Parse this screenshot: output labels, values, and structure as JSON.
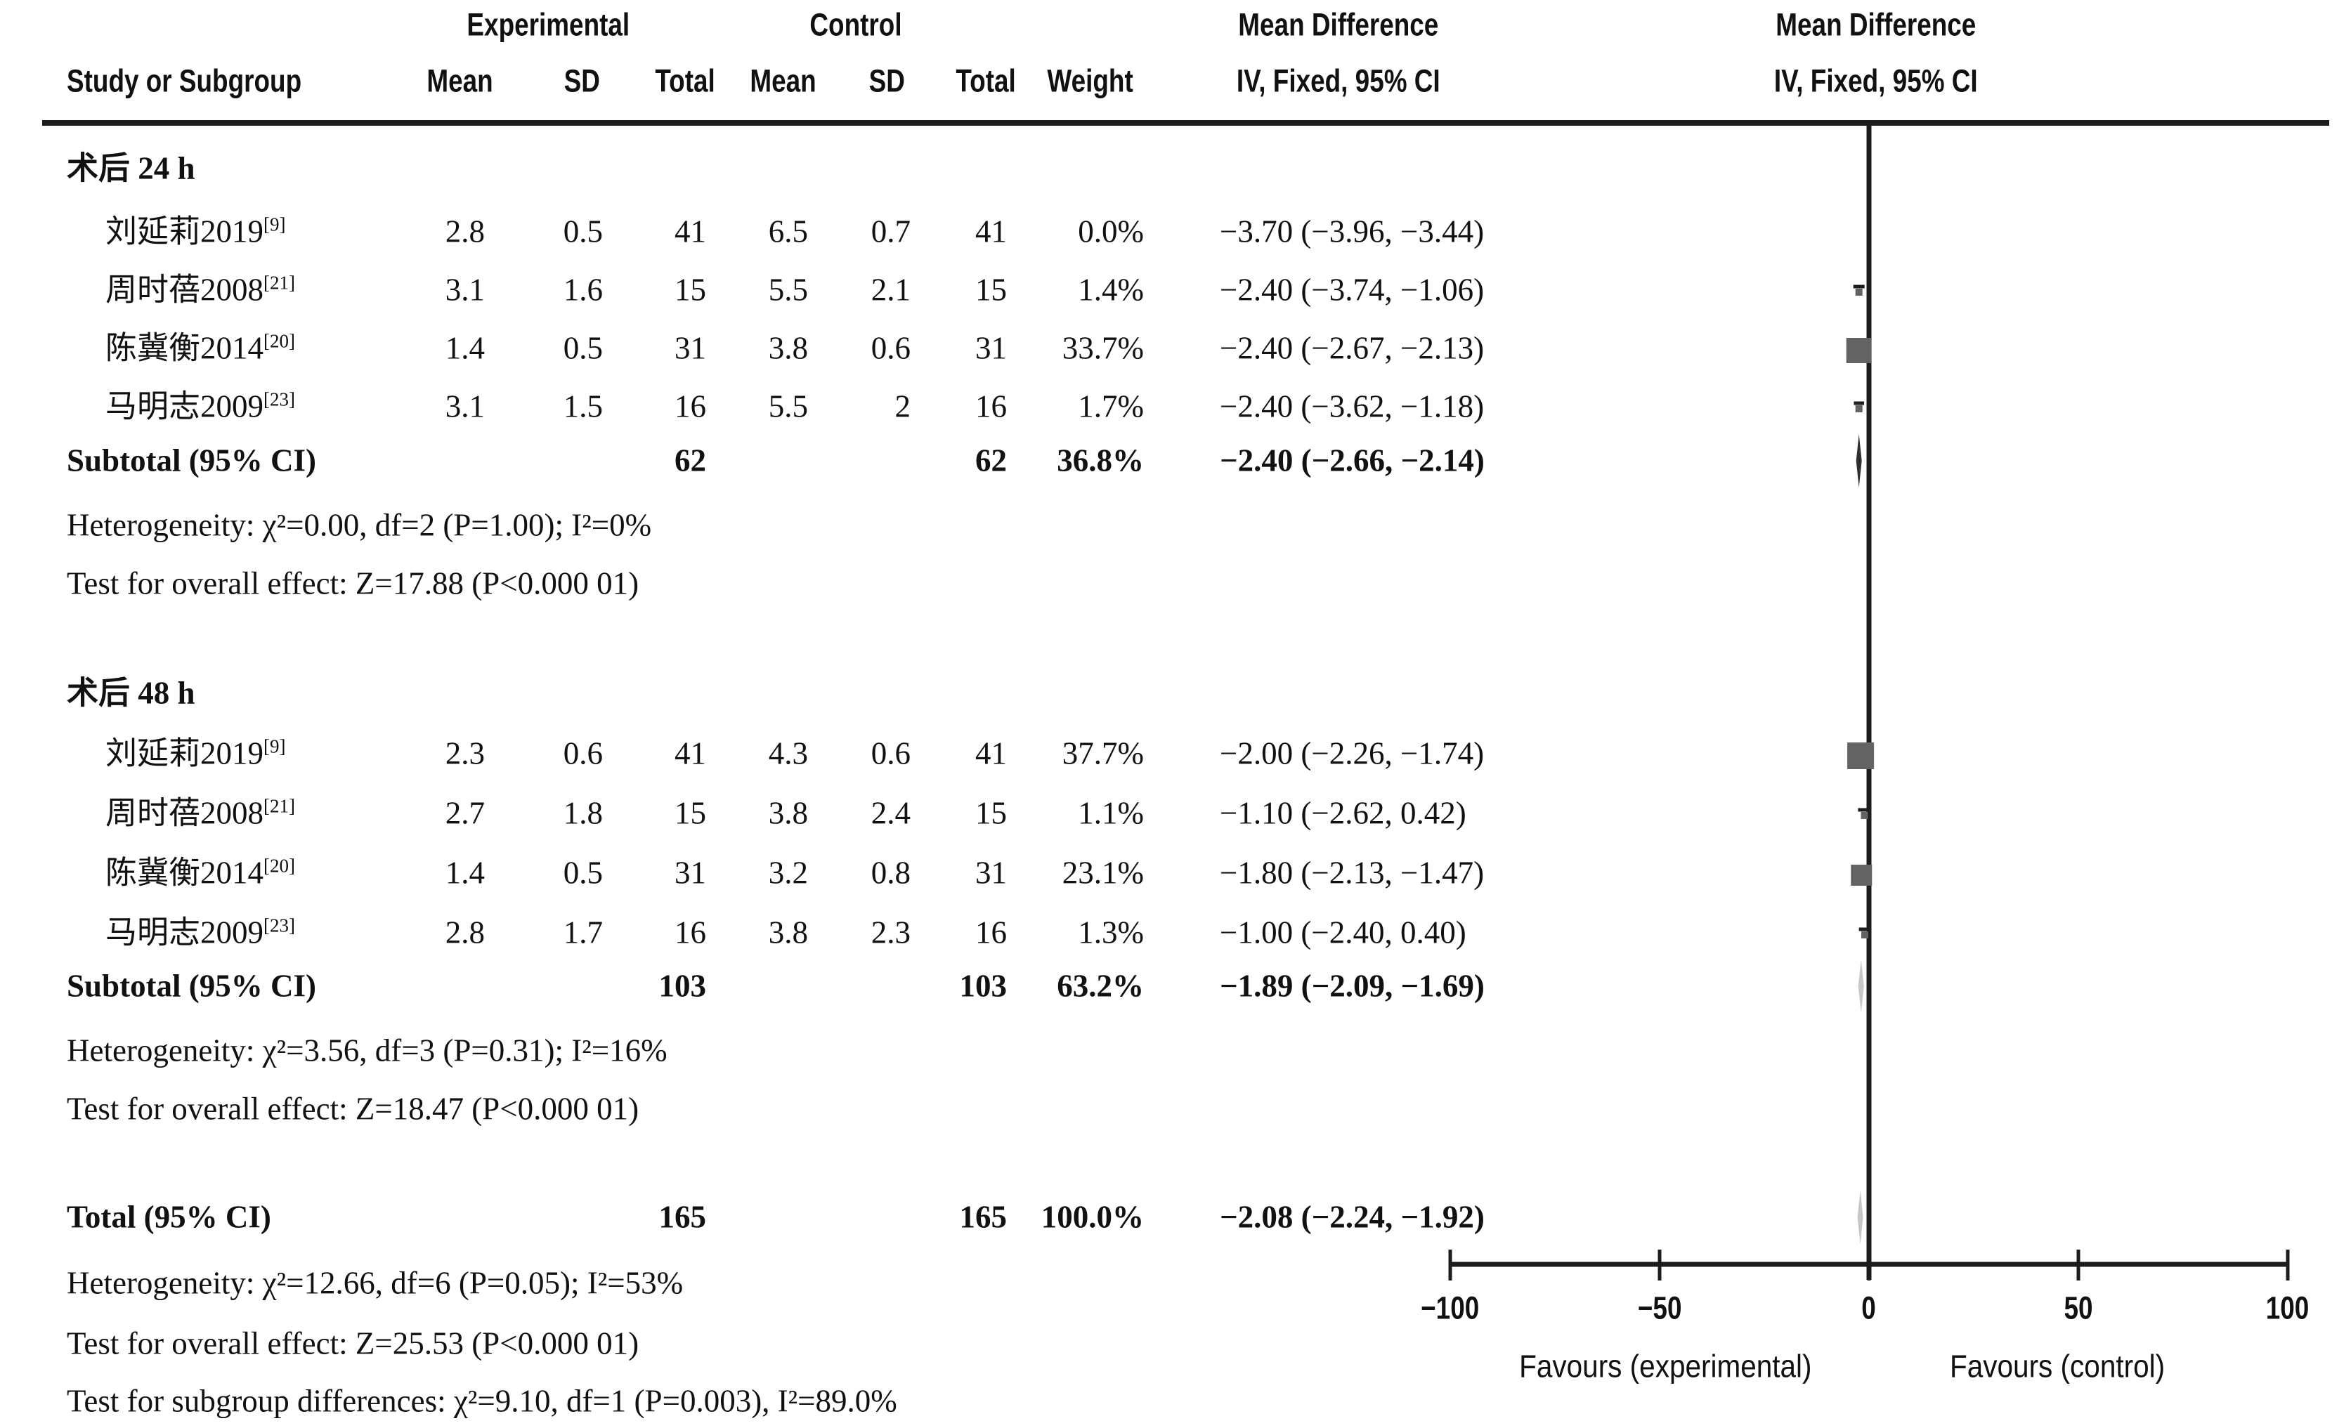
{
  "header": {
    "group_experimental": "Experimental",
    "group_control": "Control",
    "mean_difference": "Mean Difference",
    "method": "IV, Fixed, 95% CI",
    "study_col": "Study or Subgroup",
    "mean_col": "Mean",
    "sd_col": "SD",
    "total_col": "Total",
    "weight_col": "Weight"
  },
  "chart_data": {
    "type": "forest",
    "effect_measure": "Mean Difference",
    "model": "IV, Fixed",
    "ci_level": "95% CI",
    "xlim": [
      -100,
      100
    ],
    "x_tick_values": [
      -100,
      -50,
      0,
      50,
      100
    ],
    "x_tick_labels": [
      "−100",
      "−50",
      "0",
      "50",
      "100"
    ],
    "favours_left": "Favours (experimental)",
    "favours_right": "Favours (control)",
    "colors": {
      "square": "#636363",
      "line": "#1c1c1c",
      "diamond_dark": "#2f2f2f",
      "diamond_light": "#c6c6c6",
      "text": "#111111"
    },
    "groups": [
      {
        "title": "术后 24 h",
        "studies": [
          {
            "name": "刘延莉2019",
            "ref": "[9]",
            "exp": {
              "mean": "2.8",
              "sd": "0.5",
              "total": "41"
            },
            "ctl": {
              "mean": "6.5",
              "sd": "0.7",
              "total": "41"
            },
            "weight": "0.0%",
            "weight_value": 0.0,
            "ci_text": "−3.70 (−3.96, −3.44)",
            "md": -3.7,
            "lo": -3.96,
            "hi": -3.44
          },
          {
            "name": "周时蓓2008",
            "ref": "[21]",
            "exp": {
              "mean": "3.1",
              "sd": "1.6",
              "total": "15"
            },
            "ctl": {
              "mean": "5.5",
              "sd": "2.1",
              "total": "15"
            },
            "weight": "1.4%",
            "weight_value": 1.4,
            "ci_text": "−2.40 (−3.74, −1.06)",
            "md": -2.4,
            "lo": -3.74,
            "hi": -1.06
          },
          {
            "name": "陈冀衡2014",
            "ref": "[20]",
            "exp": {
              "mean": "1.4",
              "sd": "0.5",
              "total": "31"
            },
            "ctl": {
              "mean": "3.8",
              "sd": "0.6",
              "total": "31"
            },
            "weight": "33.7%",
            "weight_value": 33.7,
            "ci_text": "−2.40 (−2.67, −2.13)",
            "md": -2.4,
            "lo": -2.67,
            "hi": -2.13
          },
          {
            "name": "马明志2009",
            "ref": "[23]",
            "exp": {
              "mean": "3.1",
              "sd": "1.5",
              "total": "16"
            },
            "ctl": {
              "mean": "5.5",
              "sd": "2",
              "total": "16"
            },
            "weight": "1.7%",
            "weight_value": 1.7,
            "ci_text": "−2.40 (−3.62, −1.18)",
            "md": -2.4,
            "lo": -3.62,
            "hi": -1.18
          }
        ],
        "subtotal": {
          "label": "Subtotal (95% CI)",
          "exp_total": "62",
          "ctl_total": "62",
          "weight": "36.8%",
          "ci_text": "−2.40 (−2.66, −2.14)",
          "md": -2.4,
          "lo": -2.66,
          "hi": -2.14,
          "diamond_shade": "dark"
        },
        "heterogeneity": "Heterogeneity: χ²=0.00, df=2 (P=1.00); I²=0%",
        "overall_effect": "Test for overall effect: Z=17.88 (P<0.000 01)"
      },
      {
        "title": "术后 48 h",
        "studies": [
          {
            "name": "刘延莉2019",
            "ref": "[9]",
            "exp": {
              "mean": "2.3",
              "sd": "0.6",
              "total": "41"
            },
            "ctl": {
              "mean": "4.3",
              "sd": "0.6",
              "total": "41"
            },
            "weight": "37.7%",
            "weight_value": 37.7,
            "ci_text": "−2.00 (−2.26, −1.74)",
            "md": -2.0,
            "lo": -2.26,
            "hi": -1.74
          },
          {
            "name": "周时蓓2008",
            "ref": "[21]",
            "exp": {
              "mean": "2.7",
              "sd": "1.8",
              "total": "15"
            },
            "ctl": {
              "mean": "3.8",
              "sd": "2.4",
              "total": "15"
            },
            "weight": "1.1%",
            "weight_value": 1.1,
            "ci_text": "−1.10 (−2.62, 0.42)",
            "md": -1.1,
            "lo": -2.62,
            "hi": 0.42
          },
          {
            "name": "陈冀衡2014",
            "ref": "[20]",
            "exp": {
              "mean": "1.4",
              "sd": "0.5",
              "total": "31"
            },
            "ctl": {
              "mean": "3.2",
              "sd": "0.8",
              "total": "31"
            },
            "weight": "23.1%",
            "weight_value": 23.1,
            "ci_text": "−1.80 (−2.13, −1.47)",
            "md": -1.8,
            "lo": -2.13,
            "hi": -1.47
          },
          {
            "name": "马明志2009",
            "ref": "[23]",
            "exp": {
              "mean": "2.8",
              "sd": "1.7",
              "total": "16"
            },
            "ctl": {
              "mean": "3.8",
              "sd": "2.3",
              "total": "16"
            },
            "weight": "1.3%",
            "weight_value": 1.3,
            "ci_text": "−1.00 (−2.40, 0.40)",
            "md": -1.0,
            "lo": -2.4,
            "hi": 0.4
          }
        ],
        "subtotal": {
          "label": "Subtotal (95% CI)",
          "exp_total": "103",
          "ctl_total": "103",
          "weight": "63.2%",
          "ci_text": "−1.89 (−2.09, −1.69)",
          "md": -1.89,
          "lo": -2.09,
          "hi": -1.69,
          "diamond_shade": "light"
        },
        "heterogeneity": "Heterogeneity: χ²=3.56, df=3 (P=0.31); I²=16%",
        "overall_effect": "Test for overall effect: Z=18.47 (P<0.000 01)"
      }
    ],
    "total": {
      "label": "Total (95% CI)",
      "exp_total": "165",
      "ctl_total": "165",
      "weight": "100.0%",
      "ci_text": "−2.08 (−2.24, −1.92)",
      "md": -2.08,
      "lo": -2.24,
      "hi": -1.92,
      "diamond_shade": "light"
    },
    "total_heterogeneity": "Heterogeneity: χ²=12.66, df=6 (P=0.05); I²=53%",
    "total_overall_effect": "Test for overall effect: Z=25.53 (P<0.000 01)",
    "subgroup_difference": "Test for subgroup differences: χ²=9.10, df=1 (P=0.003), I²=89.0%"
  }
}
